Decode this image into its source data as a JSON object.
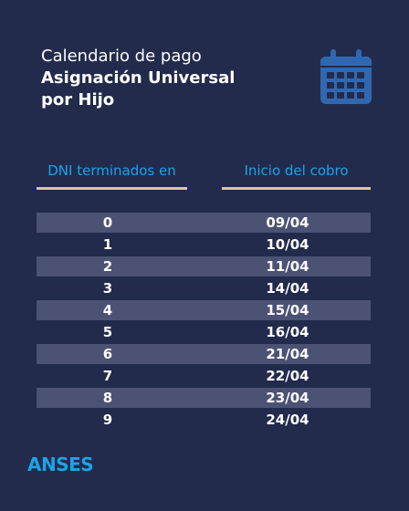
{
  "header": {
    "subtitle": "Calendario de pago",
    "title_line1": "Asignación Universal",
    "title_line2": "por Hijo",
    "icon": "calendar-icon"
  },
  "columns": {
    "dni": "DNI terminados en",
    "date": "Inicio del cobro"
  },
  "rows": [
    {
      "dni": "0",
      "date": "09/04"
    },
    {
      "dni": "1",
      "date": "10/04"
    },
    {
      "dni": "2",
      "date": "11/04"
    },
    {
      "dni": "3",
      "date": "14/04"
    },
    {
      "dni": "4",
      "date": "15/04"
    },
    {
      "dni": "5",
      "date": "16/04"
    },
    {
      "dni": "6",
      "date": "21/04"
    },
    {
      "dni": "7",
      "date": "22/04"
    },
    {
      "dni": "8",
      "date": "23/04"
    },
    {
      "dni": "9",
      "date": "24/04"
    }
  ],
  "brand": "ANSES",
  "colors": {
    "background": "#222b4c",
    "accent": "#1da3e6",
    "underline": "#d9c89a",
    "row_shade": "#4b5274",
    "icon": "#2f68b0"
  }
}
